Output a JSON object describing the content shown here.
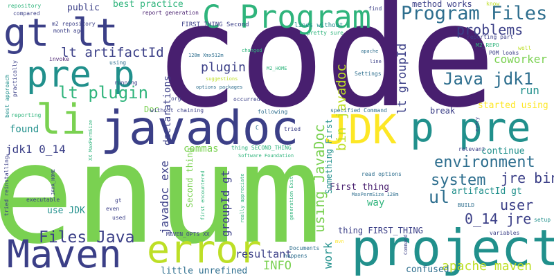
{
  "palette": {
    "dark_purple": "#481f6f",
    "indigo": "#3b3f87",
    "blue": "#2d6e8e",
    "teal": "#21908c",
    "green": "#2fb47c",
    "light_green": "#7ad151",
    "yellow_green": "#bddf26",
    "yellow": "#fde725"
  },
  "words": [
    {
      "id": "code",
      "text": "code",
      "color": "#481f6f",
      "weight": "xl"
    },
    {
      "id": "enum",
      "text": "enum",
      "color": "#7ad151",
      "weight": "xl"
    },
    {
      "id": "p-vertical",
      "text": "p",
      "color": "#2fb47c",
      "weight": "xl"
    },
    {
      "id": "javadoc",
      "text": "javadoc",
      "color": "#3b3f87",
      "weight": "lg"
    },
    {
      "id": "project",
      "text": "project",
      "color": "#21908c",
      "weight": "lg"
    },
    {
      "id": "error",
      "text": "error",
      "color": "#bddf26",
      "weight": "lg"
    },
    {
      "id": "maven",
      "text": "Maven",
      "color": "#3b3f87",
      "weight": "lg"
    },
    {
      "id": "jdk",
      "text": "JDK",
      "color": "#fde725",
      "weight": "lg"
    },
    {
      "id": "p-pre-right",
      "text": "p pre",
      "color": "#21908c",
      "weight": "lg"
    },
    {
      "id": "pre-p",
      "text": "pre p",
      "color": "#21908c",
      "weight": "lg"
    },
    {
      "id": "gt-lt",
      "text": "gt lt",
      "color": "#3b3f87",
      "weight": "lg"
    },
    {
      "id": "c-program",
      "text": "C Program",
      "color": "#2fb47c",
      "weight": "lg"
    },
    {
      "id": "li",
      "text": "li",
      "color": "#7ad151",
      "weight": "lg"
    },
    {
      "id": "program-files",
      "text": "Program Files",
      "color": "#2d6e8e",
      "weight": "md"
    },
    {
      "id": "files-java",
      "text": "Files Java",
      "color": "#3b3f87",
      "weight": "md"
    },
    {
      "id": "lt-plugin",
      "text": "lt plugin",
      "color": "#2fb47c",
      "weight": "md"
    },
    {
      "id": "java-jdk1",
      "text": "Java jdk1",
      "color": "#2d6e8e",
      "weight": "md"
    },
    {
      "id": "problems",
      "text": "problems",
      "color": "#3b3f87",
      "weight": "md"
    },
    {
      "id": "lt-artifactid",
      "text": "lt artifactId",
      "color": "#3b3f87",
      "weight": "md"
    },
    {
      "id": "environment",
      "text": "environment",
      "color": "#2d6e8e",
      "weight": "md"
    },
    {
      "id": "system",
      "text": "system",
      "color": "#2d6e8e",
      "weight": "md"
    },
    {
      "id": "user",
      "text": "user",
      "color": "#3b3f87",
      "weight": "md"
    },
    {
      "id": "ul",
      "text": "ul",
      "color": "#2d6e8e",
      "weight": "md"
    },
    {
      "id": "jre-bin",
      "text": "jre bin",
      "color": "#3b3f87",
      "weight": "md"
    },
    {
      "id": "o14-jre",
      "text": "0_14 jre",
      "color": "#3b3f87",
      "weight": "md"
    },
    {
      "id": "apache-maven",
      "text": "apache maven",
      "color": "#bddf26",
      "weight": "md"
    },
    {
      "id": "info",
      "text": "INFO",
      "color": "#7ad151",
      "weight": "md"
    },
    {
      "id": "plugin",
      "text": "plugin",
      "color": "#3b3f87",
      "weight": "md"
    },
    {
      "id": "coworker",
      "text": "coworker",
      "color": "#7ad151",
      "weight": "md"
    },
    {
      "id": "run",
      "text": "run",
      "color": "#21908c",
      "weight": "md"
    },
    {
      "id": "using-javadoc",
      "text": "using JavaDoc",
      "color": "#7ad151",
      "weight": "md"
    },
    {
      "id": "bin-javadoc",
      "text": "bin javadoc",
      "color": "#bddf26",
      "weight": "md"
    },
    {
      "id": "lt-groupid",
      "text": "lt groupId",
      "color": "#3b3f87",
      "weight": "md"
    },
    {
      "id": "groupid-gt",
      "text": "groupId gt",
      "color": "#3b3f87",
      "weight": "md"
    },
    {
      "id": "javadoc-exe",
      "text": "javadoc exe",
      "color": "#3b3f87",
      "weight": "md"
    },
    {
      "id": "work",
      "text": "work",
      "color": "#21908c",
      "weight": "md"
    },
    {
      "id": "jdk1-0-14",
      "text": "jdk1 0_14",
      "color": "#3b3f87",
      "weight": "sm"
    },
    {
      "id": "found",
      "text": "found",
      "color": "#21908c",
      "weight": "sm"
    },
    {
      "id": "use-jdk",
      "text": "use JDK",
      "color": "#21908c",
      "weight": "sm"
    },
    {
      "id": "commas",
      "text": "commas",
      "color": "#7ad151",
      "weight": "sm"
    },
    {
      "id": "resultant",
      "text": "resultant",
      "color": "#3b3f87",
      "weight": "sm"
    },
    {
      "id": "declarations",
      "text": "declarations",
      "color": "#3b3f87",
      "weight": "sm"
    },
    {
      "id": "doc",
      "text": "Doc",
      "color": "#7ad151",
      "weight": "sm"
    },
    {
      "id": "break",
      "text": "break",
      "color": "#3b3f87",
      "weight": "sm"
    },
    {
      "id": "started-using",
      "text": "started using",
      "color": "#fde725",
      "weight": "sm"
    },
    {
      "id": "continue",
      "text": "continue",
      "color": "#21908c",
      "weight": "sm"
    },
    {
      "id": "artifactid-gt",
      "text": "artifactId gt",
      "color": "#21908c",
      "weight": "sm"
    },
    {
      "id": "first-thing",
      "text": "First thing",
      "color": "#481f6f",
      "weight": "sm"
    },
    {
      "id": "way",
      "text": "way",
      "color": "#2fb47c",
      "weight": "sm"
    },
    {
      "id": "little-unrefined",
      "text": "little unrefined",
      "color": "#2d6e8e",
      "weight": "sm"
    },
    {
      "id": "confused",
      "text": "confused",
      "color": "#2d6e8e",
      "weight": "sm"
    },
    {
      "id": "thing-first-thing",
      "text": "thing FIRST_THING",
      "color": "#3b3f87",
      "weight": "sm"
    },
    {
      "id": "public",
      "text": "public",
      "color": "#3b3f87",
      "weight": "sm"
    },
    {
      "id": "best-practice",
      "text": "best practice",
      "color": "#2fb47c",
      "weight": "sm"
    },
    {
      "id": "method-works",
      "text": "method works",
      "color": "#3b3f87",
      "weight": "sm"
    },
    {
      "id": "something-first",
      "text": "Something First",
      "color": "#21908c",
      "weight": "sm"
    },
    {
      "id": "second-thing",
      "text": "Second thing",
      "color": "#7ad151",
      "weight": "sm"
    },
    {
      "id": "first-thing-second",
      "text": "FIRST_THING Second",
      "color": "#3b3f87",
      "weight": "xs"
    },
    {
      "id": "report-generation",
      "text": "report generation",
      "color": "#481f6f",
      "weight": "xs"
    },
    {
      "id": "lines-without",
      "text": "lines without",
      "color": "#21908c",
      "weight": "xs"
    },
    {
      "id": "pretty-sure",
      "text": "pretty sure",
      "color": "#2fb47c",
      "weight": "xs"
    },
    {
      "id": "find",
      "text": "find",
      "color": "#3b3f87",
      "weight": "xs"
    },
    {
      "id": "know",
      "text": "know",
      "color": "#bddf26",
      "weight": "xs"
    },
    {
      "id": "reporting-part",
      "text": "reporting part",
      "color": "#3b3f87",
      "weight": "xs"
    },
    {
      "id": "m2-repo",
      "text": "M2_REPO",
      "color": "#2fb47c",
      "weight": "xs"
    },
    {
      "id": "well",
      "text": "well",
      "color": "#bddf26",
      "weight": "xs"
    },
    {
      "id": "pom-looks",
      "text": "POM looks",
      "color": "#3b3f87",
      "weight": "xs"
    },
    {
      "id": "repository",
      "text": "repository",
      "color": "#2fb47c",
      "weight": "xs"
    },
    {
      "id": "compared",
      "text": "compared",
      "color": "#3b3f87",
      "weight": "xs"
    },
    {
      "id": "m2-repository",
      "text": "m2 repository",
      "color": "#3b3f87",
      "weight": "xs"
    },
    {
      "id": "month-ago",
      "text": "month ago",
      "color": "#3b3f87",
      "weight": "xs"
    },
    {
      "id": "invoke",
      "text": "invoke",
      "color": "#481f6f",
      "weight": "xs"
    },
    {
      "id": "using",
      "text": "using",
      "color": "#2d6e8e",
      "weight": "xs"
    },
    {
      "id": "running",
      "text": "running",
      "color": "#3b3f87",
      "weight": "xs"
    },
    {
      "id": "practically",
      "text": "practically",
      "color": "#3b3f87",
      "weight": "xs"
    },
    {
      "id": "best-approach",
      "text": "best approach",
      "color": "#21908c",
      "weight": "xs"
    },
    {
      "id": "xx-maxpermsize",
      "text": "XX MaxPermSize",
      "color": "#2fb47c",
      "weight": "xs"
    },
    {
      "id": "reporting",
      "text": "reporting",
      "color": "#2fb47c",
      "weight": "xs"
    },
    {
      "id": "128m-xmx512m",
      "text": "128m Xmx512m",
      "color": "#2d6e8e",
      "weight": "xs"
    },
    {
      "id": "changed",
      "text": "changed",
      "color": "#2fb47c",
      "weight": "xs"
    },
    {
      "id": "m2-home",
      "text": "M2_HOME",
      "color": "#2fb47c",
      "weight": "xs"
    },
    {
      "id": "suggestions",
      "text": "suggestions",
      "color": "#bddf26",
      "weight": "xs"
    },
    {
      "id": "options-packages",
      "text": "options packages",
      "color": "#2d6e8e",
      "weight": "xs"
    },
    {
      "id": "apache",
      "text": "apache",
      "color": "#2d6e8e",
      "weight": "xs"
    },
    {
      "id": "line",
      "text": "line",
      "color": "#3b3f87",
      "weight": "xs"
    },
    {
      "id": "settings",
      "text": "Settings",
      "color": "#2d6e8e",
      "weight": "xs"
    },
    {
      "id": "org",
      "text": "org",
      "color": "#3b3f87",
      "weight": "xs"
    },
    {
      "id": "without-chaining",
      "text": "without chaining",
      "color": "#3b3f87",
      "weight": "xs"
    },
    {
      "id": "occurred",
      "text": "occurred",
      "color": "#3b3f87",
      "weight": "xs"
    },
    {
      "id": "following",
      "text": "following",
      "color": "#2d6e8e",
      "weight": "xs"
    },
    {
      "id": "specified-command",
      "text": "specified Command",
      "color": "#2d6e8e",
      "weight": "xs"
    },
    {
      "id": "tried",
      "text": "tried",
      "color": "#3b3f87",
      "weight": "xs"
    },
    {
      "id": "c-small",
      "text": "C",
      "color": "#2d6e8e",
      "weight": "xs"
    },
    {
      "id": "thing-second-thing",
      "text": "thing SECOND_THING",
      "color": "#2fb47c",
      "weight": "xs"
    },
    {
      "id": "software-foundation",
      "text": "Software Foundation",
      "color": "#2fb47c",
      "weight": "xs"
    },
    {
      "id": "first-encountered",
      "text": "first encountered",
      "color": "#2fb47c",
      "weight": "xs"
    },
    {
      "id": "tried-reinstalling",
      "text": "tried reinstalling",
      "color": "#3b3f87",
      "weight": "xs"
    },
    {
      "id": "java-home",
      "text": "JAVA_HOME",
      "color": "#3b3f87",
      "weight": "xs"
    },
    {
      "id": "executable",
      "text": "executable",
      "color": "#3b3f87",
      "weight": "xs"
    },
    {
      "id": "gt",
      "text": "gt",
      "color": "#3b3f87",
      "weight": "xs"
    },
    {
      "id": "even",
      "text": "even",
      "color": "#3b3f87",
      "weight": "xs"
    },
    {
      "id": "used",
      "text": "used",
      "color": "#3b3f87",
      "weight": "xs"
    },
    {
      "id": "maven-opts-xx",
      "text": "MAVEN_OPTS XX",
      "color": "#3b3f87",
      "weight": "xs"
    },
    {
      "id": "really-appreciate",
      "text": "really appreciate",
      "color": "#2fb47c",
      "weight": "xs"
    },
    {
      "id": "generation-exit",
      "text": "generation Exit",
      "color": "#2fb47c",
      "weight": "xs"
    },
    {
      "id": "read-options",
      "text": "read options",
      "color": "#2d6e8e",
      "weight": "xs"
    },
    {
      "id": "maxpermsize-128m",
      "text": "MaxPermSize 128m",
      "color": "#2d6e8e",
      "weight": "xs"
    },
    {
      "id": "documents",
      "text": "Documents",
      "color": "#2d6e8e",
      "weight": "xs"
    },
    {
      "id": "happens",
      "text": "happens",
      "color": "#2d6e8e",
      "weight": "xs"
    },
    {
      "id": "mvn",
      "text": "mvn",
      "color": "#fde725",
      "weight": "xs"
    },
    {
      "id": "command",
      "text": "Command",
      "color": "#3b3f87",
      "weight": "xs"
    },
    {
      "id": "relevant",
      "text": "relevant",
      "color": "#3b3f87",
      "weight": "xs"
    },
    {
      "id": "every",
      "text": "every",
      "color": "#3b3f87",
      "weight": "xs"
    },
    {
      "id": "build",
      "text": "BUILD",
      "color": "#2d6e8e",
      "weight": "xs"
    },
    {
      "id": "variables",
      "text": "variables",
      "color": "#3b3f87",
      "weight": "xs"
    },
    {
      "id": "setup",
      "text": "setup",
      "color": "#21908c",
      "weight": "xs"
    }
  ]
}
